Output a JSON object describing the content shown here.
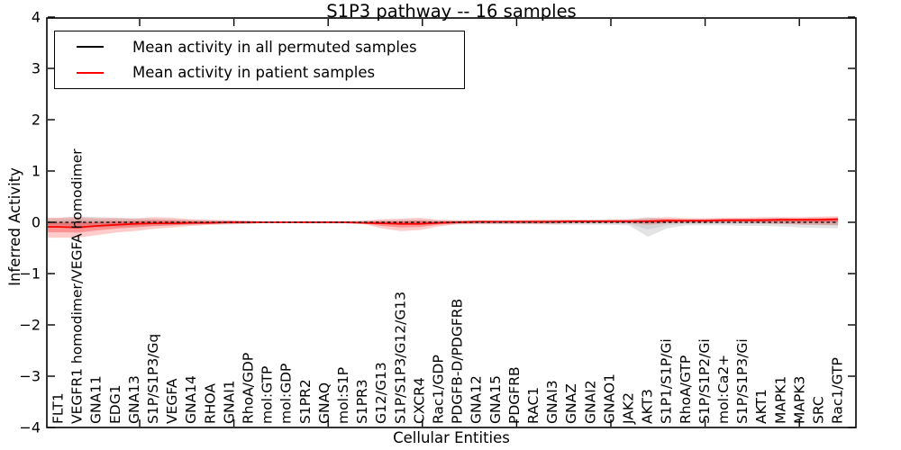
{
  "chart_data": {
    "type": "line",
    "title": "S1P3 pathway -- 16 samples",
    "xlabel": "Cellular Entities",
    "ylabel": "Inferred Activity",
    "ylim": [
      -4,
      4
    ],
    "ytick_values": [
      4,
      3,
      2,
      1,
      0,
      -1,
      -2,
      -3,
      -4
    ],
    "ytick_labels": [
      "4",
      "3",
      "2",
      "1",
      "0",
      "−1",
      "−2",
      "−3",
      "−4"
    ],
    "grid": false,
    "legend_position": "upper left",
    "categories": [
      "FLT1",
      "VEGFR1 homodimer/VEGFA homodimer",
      "GNA11",
      "EDG1",
      "GNA13",
      "S1P/S1P3/Gq",
      "VEGFA",
      "GNA14",
      "RHOA",
      "GNAI1",
      "RhoA/GDP",
      "mol:GTP",
      "mol:GDP",
      "S1PR2",
      "GNAQ",
      "mol:S1P",
      "S1PR3",
      "G12/G13",
      "S1P/S1P3/G12/G13",
      "CXCR4",
      "Rac1/GDP",
      "PDGFB-D/PDGFRB",
      "GNA12",
      "GNA15",
      "PDGFRB",
      "RAC1",
      "GNAI3",
      "GNAZ",
      "GNAI2",
      "GNAO1",
      "JAK2",
      "AKT3",
      "S1P1/S1P/Gi",
      "RhoA/GTP",
      "S1P/S1P2/Gi",
      "mol:Ca2+",
      "S1P/S1P3/Gi",
      "AKT1",
      "MAPK1",
      "MAPK3",
      "SRC",
      "Rac1/GTP"
    ],
    "series": [
      {
        "name": "Mean activity in all permuted samples",
        "color": "#000000",
        "values": [
          0,
          0,
          0,
          0,
          0,
          0,
          0,
          0,
          0,
          0,
          0,
          0,
          0,
          0,
          0,
          0,
          0,
          0,
          0,
          0,
          0,
          0,
          0,
          0,
          0,
          0,
          0,
          0,
          0,
          0,
          0,
          0,
          0,
          0,
          0,
          0,
          0,
          0,
          0,
          0,
          0,
          0
        ]
      },
      {
        "name": "Mean activity in patient samples",
        "color": "#ff0000",
        "values": [
          -0.09,
          -0.1,
          -0.07,
          -0.05,
          -0.03,
          -0.02,
          -0.02,
          -0.01,
          -0.01,
          0.0,
          0.0,
          0.0,
          0.0,
          0.0,
          0.0,
          0.0,
          -0.01,
          -0.02,
          -0.03,
          -0.03,
          -0.01,
          0.0,
          0.01,
          0.01,
          0.01,
          0.01,
          0.01,
          0.02,
          0.02,
          0.02,
          0.02,
          0.02,
          0.03,
          0.03,
          0.03,
          0.04,
          0.04,
          0.04,
          0.05,
          0.05,
          0.05,
          0.06
        ]
      }
    ],
    "bands": [
      {
        "name": "permuted samples spread",
        "color": "#999999",
        "upper": [
          0.08,
          0.12,
          0.1,
          0.09,
          0.08,
          0.07,
          0.06,
          0.05,
          0.04,
          0.04,
          0.03,
          0.01,
          0.01,
          0.02,
          0.02,
          0.02,
          0.03,
          0.04,
          0.05,
          0.05,
          0.04,
          0.04,
          0.04,
          0.04,
          0.04,
          0.04,
          0.05,
          0.05,
          0.05,
          0.05,
          0.06,
          0.1,
          0.06,
          0.06,
          0.06,
          0.06,
          0.07,
          0.07,
          0.08,
          0.06,
          0.06,
          0.05
        ],
        "lower": [
          -0.1,
          -0.12,
          -0.1,
          -0.09,
          -0.08,
          -0.07,
          -0.06,
          -0.05,
          -0.04,
          -0.04,
          -0.03,
          -0.01,
          -0.01,
          -0.02,
          -0.02,
          -0.02,
          -0.03,
          -0.04,
          -0.05,
          -0.05,
          -0.04,
          -0.04,
          -0.04,
          -0.04,
          -0.04,
          -0.04,
          -0.05,
          -0.05,
          -0.05,
          -0.05,
          -0.06,
          -0.28,
          -0.12,
          -0.06,
          -0.06,
          -0.06,
          -0.07,
          -0.07,
          -0.08,
          -0.1,
          -0.11,
          -0.12
        ]
      },
      {
        "name": "patient samples spread",
        "color": "#ff0000",
        "upper": [
          0.09,
          0.1,
          0.08,
          0.08,
          0.07,
          0.1,
          0.09,
          0.06,
          0.05,
          0.04,
          0.03,
          0.01,
          0.01,
          0.02,
          0.02,
          0.02,
          0.03,
          0.06,
          0.07,
          0.09,
          0.05,
          0.04,
          0.04,
          0.04,
          0.04,
          0.05,
          0.05,
          0.05,
          0.05,
          0.06,
          0.06,
          0.08,
          0.1,
          0.08,
          0.08,
          0.09,
          0.09,
          0.1,
          0.1,
          0.1,
          0.11,
          0.12
        ],
        "lower": [
          -0.3,
          -0.3,
          -0.25,
          -0.2,
          -0.17,
          -0.13,
          -0.1,
          -0.07,
          -0.05,
          -0.04,
          -0.03,
          -0.01,
          -0.01,
          -0.02,
          -0.02,
          -0.02,
          -0.03,
          -0.12,
          -0.17,
          -0.15,
          -0.08,
          -0.04,
          -0.03,
          -0.03,
          -0.03,
          -0.03,
          -0.03,
          -0.02,
          -0.02,
          -0.02,
          -0.02,
          -0.05,
          -0.02,
          -0.01,
          -0.01,
          -0.01,
          -0.01,
          -0.02,
          -0.03,
          -0.04,
          -0.05,
          -0.06
        ]
      }
    ]
  }
}
